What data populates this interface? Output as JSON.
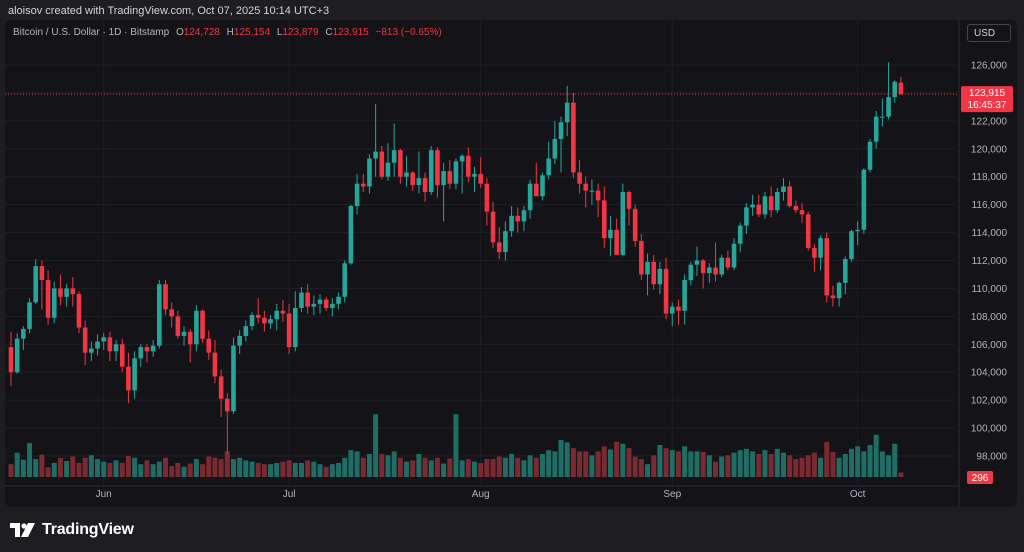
{
  "header": {
    "created_by": "aloisov created with TradingView.com, Oct 07, 2025 10:14 UTC+3"
  },
  "legend": {
    "symbol": "Bitcoin / U.S. Dollar · 1D · Bitstamp",
    "o_label": "O",
    "o_value": "124,728",
    "h_label": "H",
    "h_value": "125,154",
    "l_label": "L",
    "l_value": "123,879",
    "c_label": "C",
    "c_value": "123,915",
    "change": "−813 (−0.65%)"
  },
  "currency_button": "USD",
  "price_tag": {
    "price": "123,915",
    "countdown": "16:45:37"
  },
  "volume_tag": "296",
  "brand": "TradingView",
  "colors": {
    "up": "#26a69a",
    "down": "#f23645",
    "up_vol": "#1f6e66",
    "down_vol": "#7c2a31",
    "grid": "#1f2026",
    "axis_text": "#b2b5be"
  },
  "chart_data": {
    "type": "candlestick",
    "title": "Bitcoin / U.S. Dollar · 1D · Bitstamp",
    "ylim": [
      96500,
      127500
    ],
    "y_ticks": [
      126000,
      124000,
      122000,
      120000,
      118000,
      116000,
      114000,
      112000,
      110000,
      108000,
      106000,
      104000,
      102000,
      100000,
      98000
    ],
    "y_tick_labels": [
      "126,000",
      "124,000",
      "122,000",
      "120,000",
      "118,000",
      "116,000",
      "114,000",
      "112,000",
      "110,000",
      "108,000",
      "106,000",
      "104,000",
      "102,000",
      "100,000",
      "98,000"
    ],
    "x_tick_labels": [
      "Jun",
      "Jul",
      "Aug",
      "Sep",
      "Oct"
    ],
    "x_tick_index": [
      15,
      45,
      76,
      107,
      137
    ],
    "last_price": 123915,
    "grid": true,
    "candles_ohlc": [
      [
        105800,
        106900,
        103000,
        104000
      ],
      [
        104000,
        106800,
        103900,
        106400
      ],
      [
        106400,
        107300,
        105600,
        107100
      ],
      [
        107100,
        109300,
        106800,
        109000
      ],
      [
        109000,
        112100,
        108900,
        111600
      ],
      [
        111600,
        112000,
        108500,
        110600
      ],
      [
        110600,
        111300,
        107400,
        107900
      ],
      [
        107900,
        110500,
        107500,
        110000
      ],
      [
        110000,
        111000,
        108800,
        109400
      ],
      [
        109400,
        110300,
        108700,
        110000
      ],
      [
        110000,
        110800,
        108700,
        109600
      ],
      [
        109600,
        109800,
        106800,
        107200
      ],
      [
        107200,
        107700,
        104500,
        105400
      ],
      [
        105400,
        106200,
        104800,
        105700
      ],
      [
        105700,
        106700,
        105200,
        106200
      ],
      [
        106200,
        106800,
        105600,
        106500
      ],
      [
        106500,
        106900,
        104800,
        105500
      ],
      [
        105500,
        106300,
        104800,
        106000
      ],
      [
        106000,
        106400,
        104000,
        104400
      ],
      [
        104400,
        105400,
        101800,
        102700
      ],
      [
        102700,
        105500,
        102100,
        105000
      ],
      [
        105000,
        106000,
        104400,
        105800
      ],
      [
        105800,
        106000,
        104700,
        105500
      ],
      [
        105500,
        106300,
        105100,
        105900
      ],
      [
        105900,
        110600,
        105700,
        110300
      ],
      [
        110300,
        110600,
        108100,
        108500
      ],
      [
        108500,
        109000,
        107200,
        108000
      ],
      [
        108000,
        108400,
        106400,
        106600
      ],
      [
        106600,
        107300,
        105900,
        106900
      ],
      [
        106900,
        107100,
        104700,
        106000
      ],
      [
        106000,
        108800,
        105500,
        108400
      ],
      [
        108400,
        108500,
        106100,
        106400
      ],
      [
        106400,
        107000,
        104900,
        105400
      ],
      [
        105400,
        106300,
        103200,
        103700
      ],
      [
        103700,
        104200,
        100800,
        102100
      ],
      [
        102100,
        102500,
        98200,
        101200
      ],
      [
        101200,
        106500,
        101000,
        105900
      ],
      [
        105900,
        107000,
        105300,
        106600
      ],
      [
        106600,
        107700,
        106200,
        107300
      ],
      [
        107300,
        108300,
        107000,
        108100
      ],
      [
        108100,
        109300,
        107500,
        107900
      ],
      [
        107900,
        108400,
        106900,
        107500
      ],
      [
        107500,
        108100,
        107100,
        107800
      ],
      [
        107800,
        108900,
        107000,
        108400
      ],
      [
        108400,
        109200,
        107600,
        108200
      ],
      [
        108200,
        108900,
        105300,
        105800
      ],
      [
        105800,
        109800,
        105500,
        108600
      ],
      [
        108600,
        110100,
        108300,
        109700
      ],
      [
        109700,
        110300,
        108200,
        108700
      ],
      [
        108700,
        109500,
        108100,
        108900
      ],
      [
        108900,
        109600,
        108200,
        109200
      ],
      [
        109200,
        109400,
        108400,
        108600
      ],
      [
        108600,
        109300,
        108000,
        108900
      ],
      [
        108900,
        109700,
        108500,
        109400
      ],
      [
        109400,
        112000,
        109000,
        111800
      ],
      [
        111800,
        116000,
        111700,
        115900
      ],
      [
        115900,
        118200,
        115300,
        117500
      ],
      [
        117500,
        118200,
        116900,
        117300
      ],
      [
        117300,
        119600,
        116800,
        119300
      ],
      [
        119300,
        123200,
        118000,
        119800
      ],
      [
        119800,
        120200,
        117800,
        118000
      ],
      [
        118000,
        120400,
        117700,
        119000
      ],
      [
        119000,
        121800,
        118000,
        119900
      ],
      [
        119900,
        120000,
        117500,
        118000
      ],
      [
        118000,
        119500,
        117300,
        118300
      ],
      [
        118300,
        118400,
        117000,
        117400
      ],
      [
        117400,
        119800,
        116800,
        117900
      ],
      [
        117900,
        118300,
        116200,
        116900
      ],
      [
        116900,
        120200,
        116700,
        119900
      ],
      [
        119900,
        120100,
        116500,
        117400
      ],
      [
        117400,
        119000,
        114800,
        118400
      ],
      [
        118400,
        119200,
        117100,
        117500
      ],
      [
        117500,
        119300,
        117100,
        119100
      ],
      [
        119100,
        119600,
        116800,
        119500
      ],
      [
        119500,
        120100,
        117600,
        118000
      ],
      [
        118000,
        118700,
        116900,
        118200
      ],
      [
        118200,
        119400,
        117200,
        117500
      ],
      [
        117500,
        117900,
        114500,
        115500
      ],
      [
        115500,
        116200,
        112900,
        113300
      ],
      [
        113300,
        114400,
        112100,
        112600
      ],
      [
        112600,
        114800,
        112000,
        114100
      ],
      [
        114100,
        115900,
        113700,
        115200
      ],
      [
        115200,
        115800,
        114000,
        114800
      ],
      [
        114800,
        115900,
        114100,
        115600
      ],
      [
        115600,
        117800,
        115000,
        117500
      ],
      [
        117500,
        119000,
        116700,
        116600
      ],
      [
        116600,
        118300,
        116300,
        118100
      ],
      [
        118100,
        120500,
        117800,
        119300
      ],
      [
        119300,
        122000,
        118900,
        120700
      ],
      [
        120700,
        122300,
        118300,
        121900
      ],
      [
        121900,
        124500,
        120900,
        123300
      ],
      [
        123300,
        124000,
        117900,
        118300
      ],
      [
        118300,
        119200,
        116800,
        117500
      ],
      [
        117500,
        118000,
        115800,
        117000
      ],
      [
        117000,
        117800,
        116000,
        117000
      ],
      [
        117000,
        117500,
        115100,
        116300
      ],
      [
        116300,
        117300,
        112900,
        113600
      ],
      [
        113600,
        115200,
        112300,
        114200
      ],
      [
        114200,
        115000,
        112700,
        112400
      ],
      [
        112400,
        117500,
        112300,
        116900
      ],
      [
        116900,
        117000,
        114500,
        115700
      ],
      [
        115700,
        116000,
        113000,
        113400
      ],
      [
        113400,
        113900,
        110600,
        111000
      ],
      [
        111000,
        112500,
        109500,
        111900
      ],
      [
        111900,
        112400,
        109900,
        110300
      ],
      [
        110300,
        111900,
        109600,
        111400
      ],
      [
        111400,
        112200,
        107800,
        108200
      ],
      [
        108200,
        109000,
        107300,
        108700
      ],
      [
        108700,
        109200,
        107400,
        108400
      ],
      [
        108400,
        111000,
        107400,
        110600
      ],
      [
        110600,
        111900,
        110200,
        111700
      ],
      [
        111700,
        113000,
        110900,
        112000
      ],
      [
        112000,
        112100,
        110000,
        111100
      ],
      [
        111100,
        111800,
        110400,
        111500
      ],
      [
        111500,
        113300,
        110500,
        111000
      ],
      [
        111000,
        112400,
        110800,
        112200
      ],
      [
        112200,
        112700,
        111300,
        111500
      ],
      [
        111500,
        113600,
        111300,
        113200
      ],
      [
        113200,
        114700,
        112600,
        114500
      ],
      [
        114500,
        116100,
        113900,
        115800
      ],
      [
        115800,
        116700,
        115200,
        116000
      ],
      [
        116000,
        116700,
        115100,
        115300
      ],
      [
        115300,
        116900,
        115000,
        116600
      ],
      [
        116600,
        117300,
        115100,
        115600
      ],
      [
        115600,
        117200,
        115400,
        116900
      ],
      [
        116900,
        117900,
        116300,
        117300
      ],
      [
        117300,
        117700,
        115800,
        115900
      ],
      [
        115900,
        116300,
        115400,
        115600
      ],
      [
        115600,
        116100,
        114700,
        115300
      ],
      [
        115300,
        115500,
        112700,
        112900
      ],
      [
        112900,
        113200,
        111200,
        112200
      ],
      [
        112200,
        113800,
        111300,
        113600
      ],
      [
        113600,
        114000,
        109000,
        109500
      ],
      [
        109500,
        110200,
        108700,
        109300
      ],
      [
        109300,
        110500,
        108700,
        110400
      ],
      [
        110400,
        112300,
        109600,
        112100
      ],
      [
        112100,
        114200,
        111900,
        114100
      ],
      [
        114100,
        114800,
        113100,
        114200
      ],
      [
        114200,
        118600,
        113900,
        118500
      ],
      [
        118500,
        120700,
        118300,
        120500
      ],
      [
        120500,
        122700,
        120000,
        122300
      ],
      [
        122300,
        123600,
        121600,
        122300
      ],
      [
        122300,
        126200,
        122100,
        123700
      ],
      [
        123700,
        124900,
        123300,
        124800
      ],
      [
        124728,
        125154,
        123879,
        123915
      ]
    ],
    "volume_relative": [
      0.2,
      0.38,
      0.27,
      0.53,
      0.28,
      0.35,
      0.15,
      0.22,
      0.3,
      0.25,
      0.32,
      0.22,
      0.3,
      0.34,
      0.28,
      0.24,
      0.22,
      0.26,
      0.22,
      0.33,
      0.3,
      0.2,
      0.26,
      0.2,
      0.24,
      0.3,
      0.17,
      0.22,
      0.16,
      0.21,
      0.28,
      0.2,
      0.32,
      0.3,
      0.28,
      0.4,
      0.28,
      0.3,
      0.26,
      0.24,
      0.22,
      0.2,
      0.2,
      0.22,
      0.24,
      0.26,
      0.22,
      0.22,
      0.26,
      0.24,
      0.2,
      0.16,
      0.2,
      0.22,
      0.3,
      0.42,
      0.4,
      0.3,
      0.36,
      0.98,
      0.36,
      0.34,
      0.4,
      0.3,
      0.24,
      0.26,
      0.36,
      0.3,
      0.26,
      0.3,
      0.21,
      0.29,
      0.98,
      0.26,
      0.28,
      0.24,
      0.22,
      0.28,
      0.28,
      0.32,
      0.3,
      0.36,
      0.3,
      0.26,
      0.34,
      0.3,
      0.36,
      0.42,
      0.4,
      0.58,
      0.54,
      0.45,
      0.4,
      0.4,
      0.34,
      0.4,
      0.48,
      0.43,
      0.55,
      0.52,
      0.45,
      0.32,
      0.28,
      0.2,
      0.34,
      0.5,
      0.45,
      0.42,
      0.4,
      0.48,
      0.4,
      0.4,
      0.39,
      0.34,
      0.24,
      0.32,
      0.34,
      0.38,
      0.42,
      0.44,
      0.4,
      0.36,
      0.42,
      0.36,
      0.44,
      0.38,
      0.34,
      0.28,
      0.3,
      0.34,
      0.38,
      0.3,
      0.55,
      0.39,
      0.3,
      0.36,
      0.44,
      0.48,
      0.4,
      0.5,
      0.66,
      0.4,
      0.34,
      0.52,
      0.07
    ],
    "volume_up_flags": "derived from candle close >= open"
  }
}
